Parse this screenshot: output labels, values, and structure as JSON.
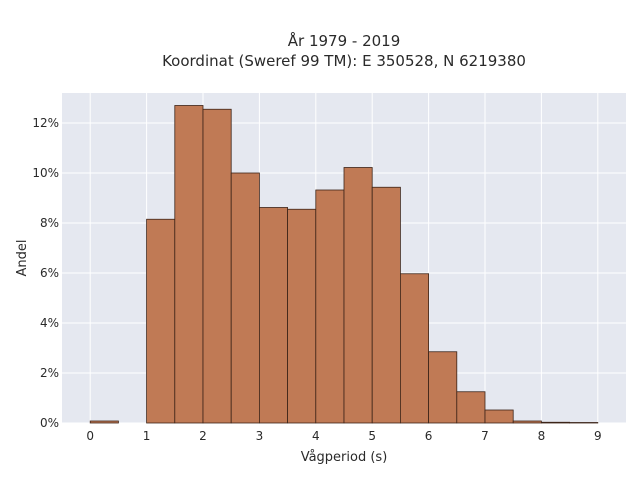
{
  "chart_data": {
    "type": "bar",
    "title_line1": "År 1979 - 2019",
    "title_line2": "Koordinat (Sweref 99 TM): E 350528, N 6219380",
    "xlabel": "Vågperiod (s)",
    "ylabel": "Andel",
    "xlim": [
      -0.5,
      9.5
    ],
    "ylim": [
      0,
      13.2
    ],
    "x_ticks": [
      0,
      1,
      2,
      3,
      4,
      5,
      6,
      7,
      8,
      9
    ],
    "x_tick_labels": [
      "0",
      "1",
      "2",
      "3",
      "4",
      "5",
      "6",
      "7",
      "8",
      "9"
    ],
    "y_ticks": [
      0,
      2,
      4,
      6,
      8,
      10,
      12
    ],
    "y_tick_labels": [
      "0%",
      "2%",
      "4%",
      "6%",
      "8%",
      "10%",
      "12%"
    ],
    "grid": true,
    "bin_width": 0.5,
    "bins": [
      {
        "x0": 0.0,
        "x1": 0.5,
        "value": 0.08
      },
      {
        "x0": 1.0,
        "x1": 1.5,
        "value": 8.15
      },
      {
        "x0": 1.5,
        "x1": 2.0,
        "value": 12.7
      },
      {
        "x0": 2.0,
        "x1": 2.5,
        "value": 12.55
      },
      {
        "x0": 2.5,
        "x1": 3.0,
        "value": 10.0
      },
      {
        "x0": 3.0,
        "x1": 3.5,
        "value": 8.62
      },
      {
        "x0": 3.5,
        "x1": 4.0,
        "value": 8.55
      },
      {
        "x0": 4.0,
        "x1": 4.5,
        "value": 9.32
      },
      {
        "x0": 4.5,
        "x1": 5.0,
        "value": 10.22
      },
      {
        "x0": 5.0,
        "x1": 5.5,
        "value": 9.43
      },
      {
        "x0": 5.5,
        "x1": 6.0,
        "value": 5.97
      },
      {
        "x0": 6.0,
        "x1": 6.5,
        "value": 2.85
      },
      {
        "x0": 6.5,
        "x1": 7.0,
        "value": 1.25
      },
      {
        "x0": 7.0,
        "x1": 7.5,
        "value": 0.52
      },
      {
        "x0": 7.5,
        "x1": 8.0,
        "value": 0.08
      },
      {
        "x0": 8.0,
        "x1": 8.5,
        "value": 0.03
      },
      {
        "x0": 8.5,
        "x1": 9.0,
        "value": 0.02
      }
    ],
    "colors": {
      "bar_fill": "#c07a55",
      "bar_stroke": "#3c2418",
      "plot_bg": "#e5e8f0",
      "grid": "#ffffff"
    }
  }
}
